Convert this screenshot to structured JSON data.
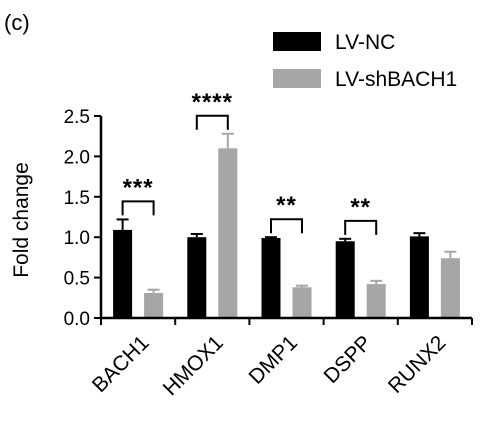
{
  "chart_data": {
    "panel_label": "(c)",
    "type": "bar",
    "title": "",
    "xlabel": "",
    "ylabel": "Fold change",
    "ylim": [
      0,
      2.5
    ],
    "yticks": [
      "0.0",
      "0.5",
      "1.0",
      "1.5",
      "2.0",
      "2.5"
    ],
    "categories": [
      "BACH1",
      "HMOX1",
      "DMP1",
      "DSPP",
      "RUNX2"
    ],
    "legend_position": "top-right",
    "grid": false,
    "series": [
      {
        "name": "LV-NC",
        "color": "#000000",
        "values": [
          1.09,
          1.0,
          0.99,
          0.95,
          1.01
        ],
        "errors": [
          0.13,
          0.04,
          0.01,
          0.03,
          0.04
        ]
      },
      {
        "name": "LV-shBACH1",
        "color": "#a6a6a6",
        "values": [
          0.31,
          2.1,
          0.38,
          0.42,
          0.74
        ],
        "errors": [
          0.04,
          0.18,
          0.02,
          0.04,
          0.08
        ]
      }
    ],
    "significance": [
      {
        "category_index": 0,
        "label": "***"
      },
      {
        "category_index": 1,
        "label": "****"
      },
      {
        "category_index": 2,
        "label": "**"
      },
      {
        "category_index": 3,
        "label": "**"
      }
    ]
  }
}
